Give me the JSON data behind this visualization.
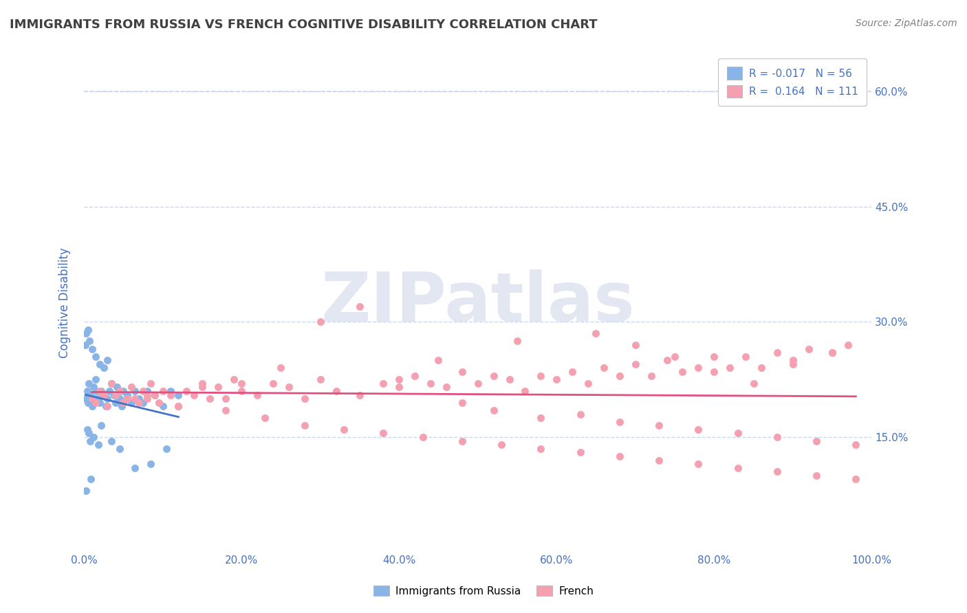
{
  "title": "IMMIGRANTS FROM RUSSIA VS FRENCH COGNITIVE DISABILITY CORRELATION CHART",
  "source_text": "Source: ZipAtlas.com",
  "xlabel": "",
  "ylabel": "Cognitive Disability",
  "legend_labels": [
    "Immigrants from Russia",
    "French"
  ],
  "legend_R": [
    -0.017,
    0.164
  ],
  "legend_N": [
    56,
    111
  ],
  "xlim": [
    0.0,
    100.0
  ],
  "ylim": [
    0.0,
    65.0
  ],
  "yticks": [
    15.0,
    30.0,
    45.0,
    60.0
  ],
  "xticks": [
    0.0,
    20.0,
    40.0,
    60.0,
    80.0,
    100.0
  ],
  "color_russia": "#89b4e8",
  "color_french": "#f4a0b0",
  "color_russia_line": "#4472c4",
  "color_french_line": "#e05080",
  "title_color": "#404040",
  "axis_label_color": "#4472c4",
  "tick_label_color": "#4472c4",
  "watermark": "ZIPatlas",
  "russia_x": [
    0.3,
    0.4,
    0.5,
    0.6,
    0.8,
    1.0,
    1.2,
    1.4,
    1.5,
    1.6,
    1.8,
    2.0,
    2.2,
    2.5,
    2.8,
    3.0,
    3.2,
    3.5,
    3.8,
    4.0,
    4.2,
    4.5,
    4.8,
    5.0,
    5.5,
    6.0,
    6.5,
    7.0,
    7.5,
    8.0,
    9.0,
    10.0,
    11.0,
    12.0,
    0.2,
    0.3,
    0.5,
    0.7,
    1.0,
    1.5,
    2.0,
    2.5,
    3.0,
    0.4,
    0.6,
    0.8,
    1.2,
    1.8,
    2.2,
    3.5,
    4.5,
    6.5,
    8.5,
    10.5,
    0.3,
    0.9
  ],
  "russia_y": [
    20.0,
    21.0,
    19.5,
    22.0,
    20.5,
    19.0,
    21.5,
    20.0,
    22.5,
    21.0,
    20.0,
    19.5,
    21.0,
    20.5,
    19.0,
    20.0,
    21.0,
    22.0,
    20.5,
    19.5,
    21.5,
    20.0,
    19.0,
    21.0,
    20.5,
    19.5,
    21.0,
    20.0,
    19.5,
    21.0,
    20.5,
    19.0,
    21.0,
    20.5,
    27.0,
    28.5,
    29.0,
    27.5,
    26.5,
    25.5,
    24.5,
    24.0,
    25.0,
    16.0,
    15.5,
    14.5,
    15.0,
    14.0,
    16.5,
    14.5,
    13.5,
    11.0,
    11.5,
    13.5,
    8.0,
    9.5
  ],
  "french_x": [
    1.0,
    1.5,
    2.0,
    2.5,
    3.0,
    3.5,
    4.0,
    4.5,
    5.0,
    5.5,
    6.0,
    6.5,
    7.0,
    7.5,
    8.0,
    8.5,
    9.0,
    9.5,
    10.0,
    11.0,
    12.0,
    13.0,
    14.0,
    15.0,
    16.0,
    17.0,
    18.0,
    19.0,
    20.0,
    22.0,
    24.0,
    26.0,
    28.0,
    30.0,
    32.0,
    35.0,
    38.0,
    40.0,
    42.0,
    44.0,
    46.0,
    48.0,
    50.0,
    52.0,
    54.0,
    56.0,
    58.0,
    60.0,
    62.0,
    64.0,
    66.0,
    68.0,
    70.0,
    72.0,
    74.0,
    76.0,
    78.0,
    80.0,
    82.0,
    84.0,
    86.0,
    88.0,
    90.0,
    92.0,
    95.0,
    97.0,
    30.0,
    35.0,
    55.0,
    20.0,
    25.0,
    15.0,
    40.0,
    45.0,
    65.0,
    70.0,
    75.0,
    80.0,
    85.0,
    90.0,
    95.0,
    48.0,
    52.0,
    58.0,
    63.0,
    68.0,
    73.0,
    78.0,
    83.0,
    88.0,
    93.0,
    98.0,
    8.0,
    12.0,
    18.0,
    23.0,
    28.0,
    33.0,
    38.0,
    43.0,
    48.0,
    53.0,
    58.0,
    63.0,
    68.0,
    73.0,
    78.0,
    83.0,
    88.0,
    93.0,
    98.0
  ],
  "french_y": [
    20.0,
    19.5,
    21.0,
    20.5,
    19.0,
    22.0,
    20.5,
    21.0,
    19.5,
    20.0,
    21.5,
    20.0,
    19.5,
    21.0,
    20.0,
    22.0,
    20.5,
    19.5,
    21.0,
    20.5,
    19.0,
    21.0,
    20.5,
    22.0,
    20.0,
    21.5,
    20.0,
    22.5,
    21.0,
    20.5,
    22.0,
    21.5,
    20.0,
    22.5,
    21.0,
    20.5,
    22.0,
    21.5,
    23.0,
    22.0,
    21.5,
    23.5,
    22.0,
    23.0,
    22.5,
    21.0,
    23.0,
    22.5,
    23.5,
    22.0,
    24.0,
    23.0,
    24.5,
    23.0,
    25.0,
    23.5,
    24.0,
    25.5,
    24.0,
    25.5,
    24.0,
    26.0,
    25.0,
    26.5,
    26.0,
    27.0,
    30.0,
    32.0,
    27.5,
    22.0,
    24.0,
    21.5,
    22.5,
    25.0,
    28.5,
    27.0,
    25.5,
    23.5,
    22.0,
    24.5,
    26.0,
    19.5,
    18.5,
    17.5,
    18.0,
    17.0,
    16.5,
    16.0,
    15.5,
    15.0,
    14.5,
    14.0,
    20.5,
    19.0,
    18.5,
    17.5,
    16.5,
    16.0,
    15.5,
    15.0,
    14.5,
    14.0,
    13.5,
    13.0,
    12.5,
    12.0,
    11.5,
    11.0,
    10.5,
    10.0,
    9.5
  ],
  "background_color": "#ffffff",
  "grid_color": "#c8d8f0",
  "top_dashed_y": 60.0,
  "watermark_color": "#d0d8e8",
  "watermark_fontsize": 72
}
